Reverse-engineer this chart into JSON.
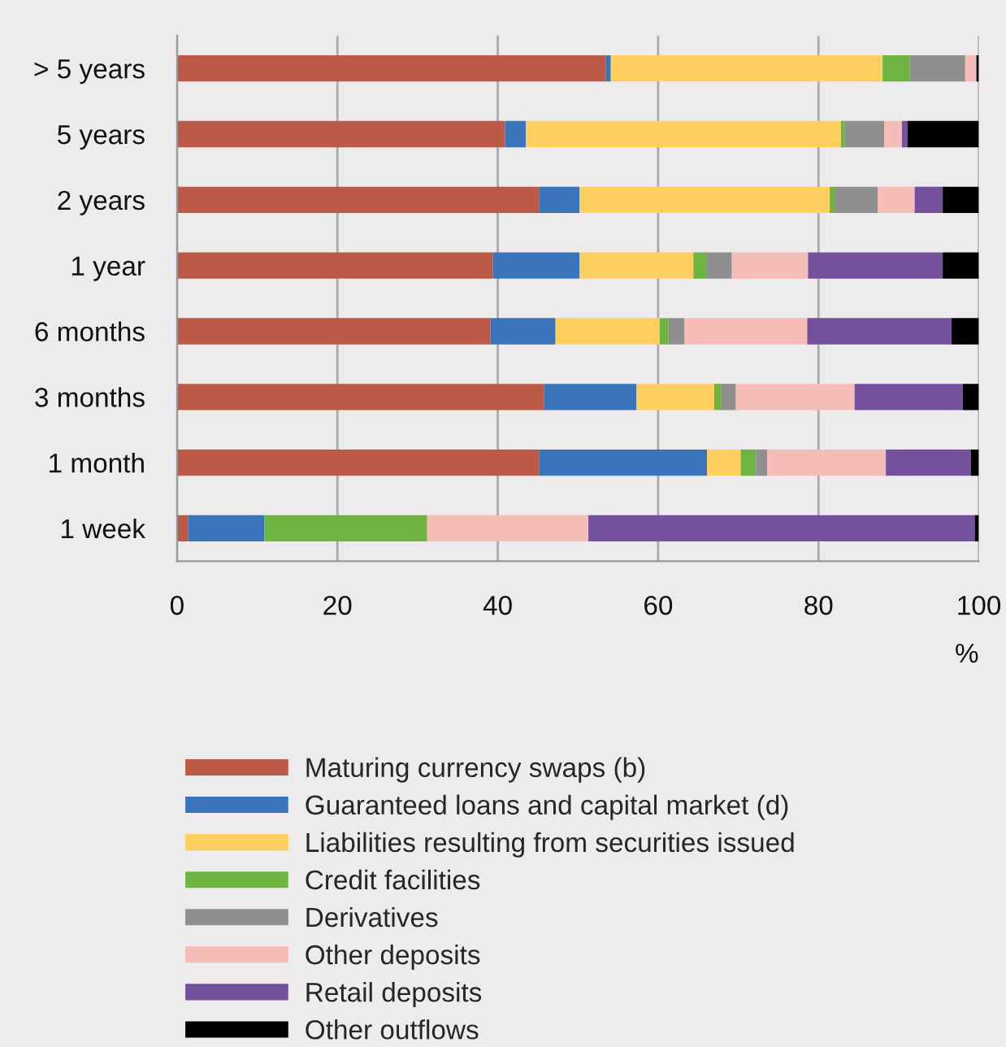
{
  "chart_data": {
    "type": "bar",
    "orientation": "horizontal",
    "stacked": true,
    "xlabel": "%",
    "categories": [
      "> 5 years",
      "5 years",
      "2 years",
      "1 year",
      "6 months",
      "3 months",
      "1 month",
      "1 week"
    ],
    "series": [
      {
        "name": "Maturing currency swaps (b)",
        "color": "#bd5a47",
        "values": [
          53.5,
          40.9,
          45.2,
          39.4,
          39.1,
          45.8,
          45.2,
          1.4
        ]
      },
      {
        "name": "Guaranteed loans and capital market (d)",
        "color": "#3a75bb",
        "values": [
          0.6,
          2.6,
          5.0,
          10.8,
          8.1,
          11.5,
          20.9,
          9.5
        ]
      },
      {
        "name": "Liabilities resulting from securities issued",
        "color": "#fecf5f",
        "values": [
          33.9,
          39.3,
          31.2,
          14.2,
          13.0,
          9.7,
          4.2,
          0
        ]
      },
      {
        "name": "Credit facilities",
        "color": "#6db443",
        "values": [
          3.4,
          0.5,
          0.7,
          1.7,
          1.1,
          0.9,
          1.9,
          20.3
        ]
      },
      {
        "name": "Derivatives",
        "color": "#8f8f8f",
        "values": [
          6.9,
          4.9,
          5.3,
          3.1,
          2.0,
          1.8,
          1.4,
          0
        ]
      },
      {
        "name": "Other deposits",
        "color": "#f6bcb8",
        "values": [
          1.4,
          2.2,
          4.6,
          9.5,
          15.3,
          14.8,
          14.8,
          20.1
        ]
      },
      {
        "name": "Retail deposits",
        "color": "#74519c",
        "values": [
          0,
          0.7,
          3.5,
          16.8,
          18.0,
          13.5,
          10.6,
          48.2
        ]
      },
      {
        "name": "Other outflows",
        "color": "#000000",
        "values": [
          0.3,
          8.9,
          4.5,
          4.5,
          3.4,
          2.0,
          1.0,
          0.5
        ]
      }
    ],
    "xlim": [
      0,
      100
    ],
    "xticks": [
      0,
      20,
      40,
      60,
      80,
      100
    ],
    "grid": "x",
    "legend": "bottom"
  }
}
